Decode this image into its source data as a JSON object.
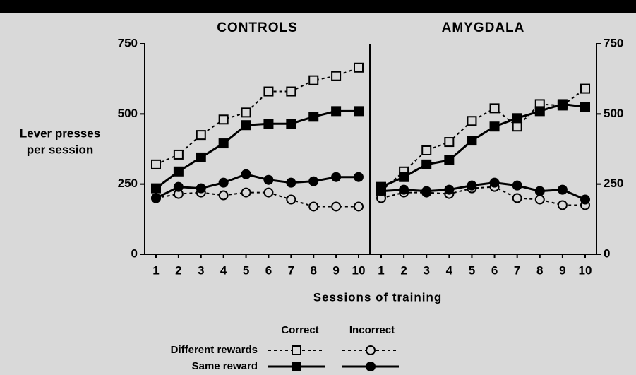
{
  "chart_data": [
    {
      "type": "line",
      "title": "CONTROLS",
      "yaxis_side": "left",
      "categories": [
        "1",
        "2",
        "3",
        "4",
        "5",
        "6",
        "7",
        "8",
        "9",
        "10"
      ],
      "ylim": [
        0,
        750
      ],
      "yticks": [
        0,
        250,
        500,
        750
      ],
      "series": [
        {
          "color": "#000000",
          "marker": "square",
          "filled": false,
          "dashed": true,
          "values": [
            320,
            355,
            425,
            480,
            505,
            580,
            580,
            620,
            635,
            665
          ]
        },
        {
          "color": "#000000",
          "marker": "square",
          "filled": true,
          "dashed": false,
          "values": [
            235,
            295,
            345,
            395,
            460,
            465,
            465,
            490,
            510,
            510
          ]
        },
        {
          "color": "#000000",
          "marker": "circle",
          "filled": false,
          "dashed": true,
          "values": [
            200,
            215,
            220,
            210,
            220,
            220,
            195,
            170,
            170,
            170
          ]
        },
        {
          "color": "#000000",
          "marker": "circle",
          "filled": true,
          "dashed": false,
          "values": [
            200,
            240,
            235,
            255,
            285,
            265,
            255,
            260,
            275,
            275
          ]
        }
      ]
    },
    {
      "type": "line",
      "title": "AMYGDALA",
      "yaxis_side": "right",
      "categories": [
        "1",
        "2",
        "3",
        "4",
        "5",
        "6",
        "7",
        "8",
        "9",
        "10"
      ],
      "ylim": [
        0,
        750
      ],
      "yticks": [
        0,
        250,
        500,
        750
      ],
      "series": [
        {
          "color": "#000000",
          "marker": "square",
          "filled": false,
          "dashed": true,
          "values": [
            225,
            295,
            370,
            400,
            475,
            520,
            455,
            535,
            530,
            590
          ]
        },
        {
          "color": "#000000",
          "marker": "square",
          "filled": true,
          "dashed": false,
          "values": [
            240,
            275,
            320,
            335,
            405,
            455,
            485,
            510,
            535,
            525
          ]
        },
        {
          "color": "#000000",
          "marker": "circle",
          "filled": false,
          "dashed": true,
          "values": [
            200,
            220,
            220,
            215,
            235,
            240,
            200,
            195,
            175,
            175
          ]
        },
        {
          "color": "#000000",
          "marker": "circle",
          "filled": true,
          "dashed": false,
          "values": [
            225,
            230,
            225,
            230,
            245,
            255,
            245,
            225,
            230,
            195
          ]
        }
      ]
    }
  ],
  "y_label": [
    "Lever presses",
    "per session"
  ],
  "x_label": "Sessions of training",
  "legend": {
    "columns": [
      "Correct",
      "Incorrect"
    ],
    "rows": [
      "Different rewards",
      "Same reward"
    ]
  }
}
